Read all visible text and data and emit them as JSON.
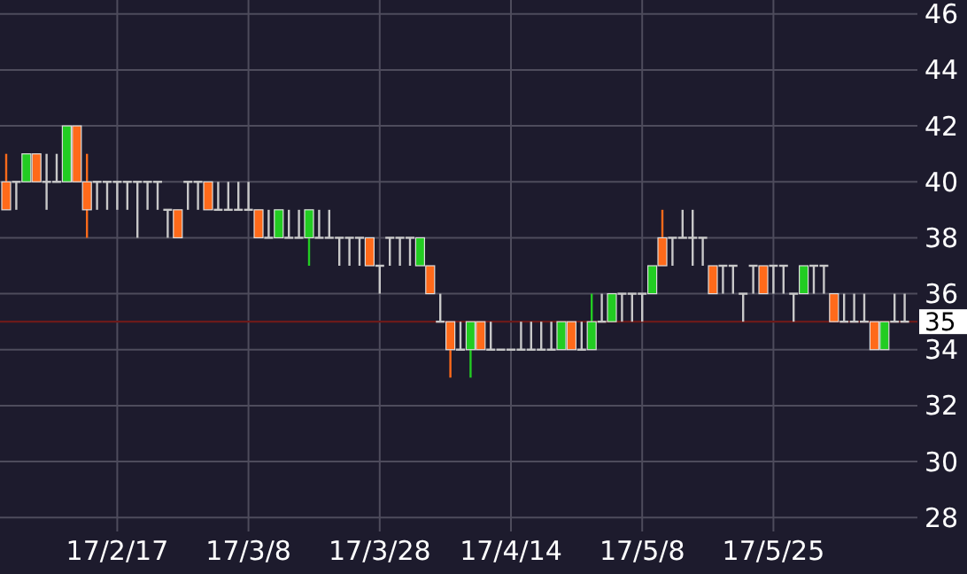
{
  "chart_data": {
    "type": "candlestick",
    "categories": [
      null,
      null,
      null,
      null,
      null,
      null,
      null,
      null,
      null,
      null,
      null,
      "17/2/17",
      null,
      null,
      null,
      null,
      null,
      null,
      null,
      null,
      null,
      null,
      null,
      null,
      "17/3/8",
      null,
      null,
      null,
      null,
      null,
      null,
      null,
      null,
      null,
      null,
      null,
      null,
      "17/3/28",
      null,
      null,
      null,
      null,
      null,
      null,
      null,
      null,
      null,
      null,
      null,
      null,
      "17/4/14",
      null,
      null,
      null,
      null,
      null,
      null,
      null,
      null,
      null,
      null,
      null,
      null,
      "17/5/8",
      null,
      null,
      null,
      null,
      null,
      null,
      null,
      null,
      null,
      null,
      null,
      null,
      "17/5/25",
      null,
      null,
      null,
      null,
      null,
      null,
      null,
      null,
      null,
      null,
      null,
      null,
      null
    ],
    "ohlc": [
      [
        40,
        41,
        39,
        39
      ],
      [
        40,
        40,
        39,
        40
      ],
      [
        40,
        41,
        40,
        41
      ],
      [
        41,
        41,
        40,
        40
      ],
      [
        40,
        41,
        39,
        40
      ],
      [
        40,
        41,
        40,
        40
      ],
      [
        40,
        42,
        40,
        42
      ],
      [
        42,
        42,
        40,
        40
      ],
      [
        40,
        41,
        38,
        39
      ],
      [
        40,
        40,
        39,
        40
      ],
      [
        40,
        40,
        39,
        40
      ],
      [
        40,
        40,
        39,
        40
      ],
      [
        40,
        40,
        39,
        40
      ],
      [
        40,
        40,
        38,
        40
      ],
      [
        40,
        40,
        39,
        40
      ],
      [
        40,
        40,
        39,
        40
      ],
      [
        39,
        39,
        38,
        39
      ],
      [
        39,
        39,
        38,
        38
      ],
      [
        40,
        40,
        39,
        40
      ],
      [
        40,
        40,
        39,
        40
      ],
      [
        40,
        40,
        39,
        39
      ],
      [
        39,
        40,
        39,
        39
      ],
      [
        39,
        40,
        39,
        39
      ],
      [
        39,
        40,
        39,
        39
      ],
      [
        39,
        40,
        39,
        39
      ],
      [
        39,
        39,
        38,
        38
      ],
      [
        38,
        39,
        38,
        38
      ],
      [
        38,
        39,
        38,
        39
      ],
      [
        38,
        39,
        38,
        38
      ],
      [
        38,
        39,
        38,
        38
      ],
      [
        38,
        39,
        37,
        39
      ],
      [
        38,
        39,
        38,
        38
      ],
      [
        38,
        39,
        38,
        38
      ],
      [
        38,
        38,
        37,
        38
      ],
      [
        38,
        38,
        37,
        38
      ],
      [
        38,
        38,
        37,
        38
      ],
      [
        38,
        38,
        37,
        37
      ],
      [
        37,
        37,
        36,
        37
      ],
      [
        38,
        38,
        37,
        38
      ],
      [
        38,
        38,
        37,
        38
      ],
      [
        38,
        38,
        37,
        38
      ],
      [
        37,
        38,
        37,
        38
      ],
      [
        37,
        37,
        36,
        36
      ],
      [
        35,
        36,
        35,
        35
      ],
      [
        35,
        35,
        33,
        34
      ],
      [
        34,
        35,
        34,
        34
      ],
      [
        34,
        35,
        33,
        35
      ],
      [
        35,
        35,
        34,
        34
      ],
      [
        34,
        35,
        34,
        34
      ],
      [
        34,
        34,
        34,
        34
      ],
      [
        34,
        34,
        34,
        34
      ],
      [
        34,
        35,
        34,
        34
      ],
      [
        34,
        35,
        34,
        34
      ],
      [
        34,
        35,
        34,
        34
      ],
      [
        34,
        35,
        34,
        34
      ],
      [
        34,
        35,
        34,
        35
      ],
      [
        35,
        35,
        34,
        34
      ],
      [
        34,
        35,
        34,
        34
      ],
      [
        34,
        36,
        34,
        35
      ],
      [
        35,
        36,
        35,
        35
      ],
      [
        35,
        36,
        35,
        36
      ],
      [
        36,
        36,
        35,
        36
      ],
      [
        36,
        36,
        35,
        36
      ],
      [
        36,
        36,
        35,
        36
      ],
      [
        36,
        37,
        36,
        37
      ],
      [
        38,
        39,
        37,
        37
      ],
      [
        38,
        38,
        37,
        38
      ],
      [
        38,
        39,
        38,
        38
      ],
      [
        38,
        39,
        37,
        38
      ],
      [
        38,
        38,
        37,
        38
      ],
      [
        37,
        37,
        36,
        36
      ],
      [
        37,
        37,
        36,
        37
      ],
      [
        37,
        37,
        36,
        37
      ],
      [
        36,
        36,
        35,
        36
      ],
      [
        37,
        37,
        36,
        37
      ],
      [
        37,
        37,
        36,
        36
      ],
      [
        37,
        37,
        36,
        37
      ],
      [
        37,
        37,
        36,
        37
      ],
      [
        36,
        36,
        35,
        36
      ],
      [
        36,
        37,
        36,
        37
      ],
      [
        37,
        37,
        36,
        37
      ],
      [
        37,
        37,
        36,
        37
      ],
      [
        36,
        36,
        35,
        35
      ],
      [
        35,
        36,
        35,
        35
      ],
      [
        35,
        36,
        35,
        35
      ],
      [
        35,
        36,
        35,
        35
      ],
      [
        35,
        35,
        34,
        34
      ],
      [
        34,
        35,
        34,
        35
      ],
      [
        35,
        36,
        35,
        35
      ],
      [
        35,
        36,
        35,
        35
      ]
    ],
    "colors": [
      "#ff6a1a",
      "#c8c8c8",
      "#22cc22",
      "#ff6a1a",
      "#c8c8c8",
      "#c8c8c8",
      "#22cc22",
      "#ff6a1a",
      "#ff6a1a",
      "#c8c8c8",
      "#c8c8c8",
      "#c8c8c8",
      "#c8c8c8",
      "#c8c8c8",
      "#c8c8c8",
      "#c8c8c8",
      "#c8c8c8",
      "#ff6a1a",
      "#c8c8c8",
      "#c8c8c8",
      "#ff6a1a",
      "#c8c8c8",
      "#c8c8c8",
      "#c8c8c8",
      "#c8c8c8",
      "#ff6a1a",
      "#c8c8c8",
      "#22cc22",
      "#c8c8c8",
      "#c8c8c8",
      "#22cc22",
      "#c8c8c8",
      "#c8c8c8",
      "#c8c8c8",
      "#c8c8c8",
      "#c8c8c8",
      "#ff6a1a",
      "#c8c8c8",
      "#c8c8c8",
      "#c8c8c8",
      "#c8c8c8",
      "#22cc22",
      "#ff6a1a",
      "#c8c8c8",
      "#ff6a1a",
      "#c8c8c8",
      "#22cc22",
      "#ff6a1a",
      "#c8c8c8",
      "#c8c8c8",
      "#c8c8c8",
      "#c8c8c8",
      "#c8c8c8",
      "#c8c8c8",
      "#c8c8c8",
      "#22cc22",
      "#ff6a1a",
      "#c8c8c8",
      "#22cc22",
      "#c8c8c8",
      "#22cc22",
      "#c8c8c8",
      "#c8c8c8",
      "#c8c8c8",
      "#22cc22",
      "#ff6a1a",
      "#c8c8c8",
      "#c8c8c8",
      "#c8c8c8",
      "#c8c8c8",
      "#ff6a1a",
      "#c8c8c8",
      "#c8c8c8",
      "#c8c8c8",
      "#c8c8c8",
      "#ff6a1a",
      "#c8c8c8",
      "#c8c8c8",
      "#c8c8c8",
      "#22cc22",
      "#c8c8c8",
      "#c8c8c8",
      "#ff6a1a",
      "#c8c8c8",
      "#c8c8c8",
      "#c8c8c8",
      "#ff6a1a",
      "#22cc22",
      "#c8c8c8",
      "#c8c8c8"
    ],
    "ylim": [
      27.5,
      46.5
    ],
    "yticks": [
      28,
      30,
      32,
      34,
      36,
      38,
      40,
      42,
      44,
      46
    ],
    "grid": true,
    "ref_lines": [
      {
        "axis": "y",
        "value": 35,
        "label": "35",
        "color": "#6b1a1a"
      }
    ]
  }
}
